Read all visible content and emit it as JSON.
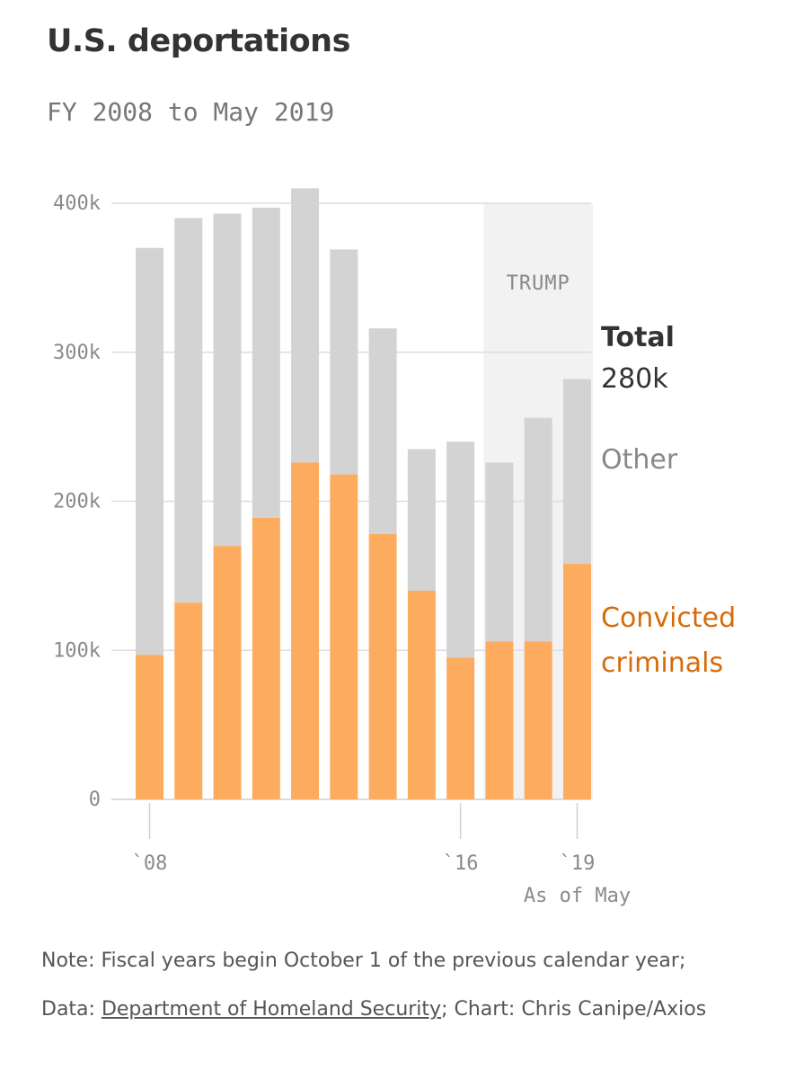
{
  "title": "U.S. deportations",
  "subtitle": "FY 2008 to May 2019",
  "chart_data": {
    "type": "bar",
    "stacked": true,
    "categories": [
      "2008",
      "2009",
      "2010",
      "2011",
      "2012",
      "2013",
      "2014",
      "2015",
      "2016",
      "2017",
      "2018",
      "2019"
    ],
    "series": [
      {
        "name": "Convicted criminals",
        "color": "#fdac5f",
        "values": [
          97,
          132,
          170,
          189,
          226,
          218,
          178,
          140,
          95,
          106,
          106,
          158
        ]
      },
      {
        "name": "Other",
        "color": "#d3d3d3",
        "values": [
          273,
          258,
          223,
          208,
          184,
          151,
          138,
          95,
          145,
          120,
          150,
          124
        ]
      }
    ],
    "y_ticks": [
      "0",
      "100k",
      "200k",
      "300k",
      "400k"
    ],
    "y_tick_values": [
      0,
      100,
      200,
      300,
      400
    ],
    "ylim": [
      0,
      400
    ],
    "units": "thousands",
    "x_ticks": [
      {
        "category": "2008",
        "label": "`08"
      },
      {
        "category": "2016",
        "label": "`16"
      },
      {
        "category": "2019",
        "label": "`19"
      }
    ],
    "x_note": "As of May",
    "shaded_region": {
      "from": "2017",
      "to": "2019",
      "label": "TRUMP"
    },
    "legend": {
      "total_label": "Total",
      "total_value": "280k",
      "other_label": "Other",
      "convicted_label_line1": "Convicted",
      "convicted_label_line2": "criminals"
    }
  },
  "footer": {
    "note": "Note: Fiscal years begin October 1 of the previous calendar year;",
    "data_prefix": "Data: ",
    "data_link": "Department of Homeland Security",
    "chart_credit": "; Chart: Chris Canipe/Axios"
  },
  "colors": {
    "convicted": "#fdac5f",
    "other": "#d3d3d3",
    "shade": "#f2f2f2",
    "convicted_label": "#d56b0a"
  }
}
